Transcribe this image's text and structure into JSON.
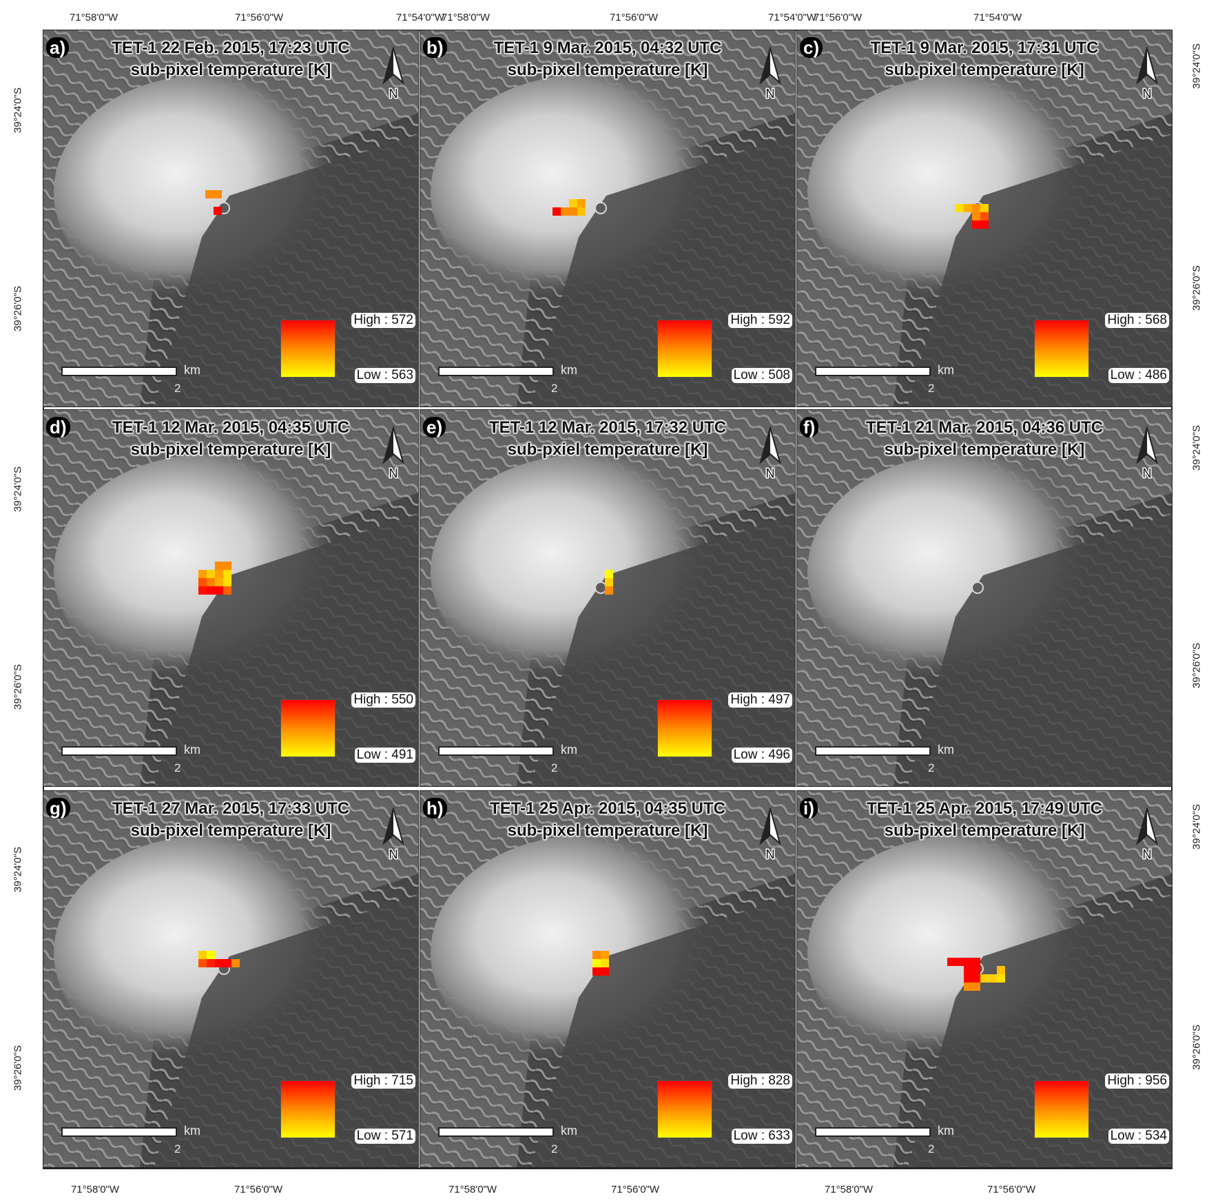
{
  "axes": {
    "top_ticks": [
      "71°58'0\"W",
      "71°56'0\"W",
      "71°54'0\"W",
      "71°58'0\"W",
      "71°56'0\"W",
      "71°54'0\"W",
      "71°56'0\"W",
      "71°54'0\"W"
    ],
    "bottom_ticks": [
      "71°58'0\"W",
      "71°56'0\"W",
      "71°58'0\"W",
      "71°56'0\"W",
      "71°58'0\"W",
      "71°56'0\"W"
    ],
    "left_ticks": [
      "39°24'0\"S",
      "39°26'0\"S",
      "39°24'0\"S",
      "39°26'0\"S",
      "39°24'0\"S",
      "39°26'0\"S"
    ],
    "right_ticks": [
      "39°24'0\"S",
      "39°26'0\"S",
      "39°24'0\"S",
      "39°26'0\"S",
      "39°24'0\"S",
      "39°26'0\"S"
    ]
  },
  "scale": {
    "unit": "km",
    "start": "0",
    "end": "2"
  },
  "north_label": "N",
  "legend_colors": {
    "high": "#ff0000",
    "low": "#ffff00",
    "mid": "#ff8c00"
  },
  "panels": [
    {
      "letter": "a)",
      "title": "TET-1 22 Feb. 2015, 17:23 UTC",
      "subtitle": "sub-pixel temperature [K]",
      "high": "High : 572",
      "low": "Low : 563",
      "hotspots": [
        [
          0,
          0,
          "#ff8c00"
        ],
        [
          1,
          0,
          "#ff8c00"
        ],
        [
          1,
          2,
          "#ff0000"
        ]
      ],
      "origin": [
        235,
        232
      ]
    },
    {
      "letter": "b)",
      "title": "TET-1 9 Mar. 2015, 04:32 UTC",
      "subtitle": "sub-pixel temperature [K]",
      "high": "High : 592",
      "low": "Low : 508",
      "hotspots": [
        [
          2,
          0,
          "#ffd000"
        ],
        [
          3,
          0,
          "#ffa500"
        ],
        [
          0,
          1,
          "#ff0000"
        ],
        [
          1,
          1,
          "#ff8c00"
        ],
        [
          2,
          1,
          "#ff8c00"
        ],
        [
          3,
          1,
          "#ffc000"
        ]
      ],
      "origin": [
        192,
        245
      ]
    },
    {
      "letter": "c)",
      "title": "TET-1 9 Mar. 2015, 17:31 UTC",
      "subtitle": "sub.pixel temperature [K]",
      "high": "High : 568",
      "low": "Low : 486",
      "hotspots": [
        [
          0,
          0,
          "#ffe000"
        ],
        [
          1,
          0,
          "#ffb000"
        ],
        [
          2,
          0,
          "#ff9000"
        ],
        [
          3,
          0,
          "#ffd000"
        ],
        [
          2,
          1,
          "#ff8c00"
        ],
        [
          3,
          1,
          "#ff5000"
        ],
        [
          2,
          2,
          "#ff0000"
        ],
        [
          3,
          2,
          "#ff0000"
        ]
      ],
      "origin": [
        230,
        252
      ]
    },
    {
      "letter": "d)",
      "title": "TET-1 12 Mar. 2015, 04:35 UTC",
      "subtitle": "sub-pixel temperature [K]",
      "high": "High : 550",
      "low": "Low : 491",
      "hotspots": [
        [
          2,
          0,
          "#ff8c00"
        ],
        [
          3,
          0,
          "#ff8c00"
        ],
        [
          0,
          1,
          "#ffa000"
        ],
        [
          1,
          1,
          "#ffd000"
        ],
        [
          2,
          1,
          "#ffa000"
        ],
        [
          3,
          1,
          "#ffe000"
        ],
        [
          0,
          2,
          "#ff5000"
        ],
        [
          1,
          2,
          "#ff8000"
        ],
        [
          2,
          2,
          "#ffb000"
        ],
        [
          3,
          2,
          "#ffe000"
        ],
        [
          0,
          3,
          "#ff1000"
        ],
        [
          1,
          3,
          "#ff0000"
        ],
        [
          2,
          3,
          "#ff0000"
        ],
        [
          3,
          3,
          "#ff6000"
        ]
      ],
      "origin": [
        225,
        220
      ]
    },
    {
      "letter": "e)",
      "title": "TET-1 12 Mar. 2015, 17:32 UTC",
      "subtitle": "sub-pxiel temperature [K]",
      "high": "High : 497",
      "low": "Low : 496",
      "hotspots": [
        [
          0,
          0,
          "#ffff00"
        ],
        [
          0,
          1,
          "#ffd000"
        ],
        [
          0,
          2,
          "#ff8c00"
        ]
      ],
      "origin": [
        268,
        232
      ]
    },
    {
      "letter": "f)",
      "title": "TET-1 21 Mar. 2015, 04:36 UTC",
      "subtitle": "sub-pixel temperature [K]",
      "high": "",
      "low": "",
      "hotspots": [],
      "origin": [
        0,
        0
      ]
    },
    {
      "letter": "g)",
      "title": "TET-1 27 Mar. 2015, 17:33 UTC",
      "subtitle": "sub-pixel temperature [K]",
      "high": "High : 715",
      "low": "Low : 571",
      "hotspots": [
        [
          0,
          0,
          "#ffd000"
        ],
        [
          1,
          0,
          "#ffff00"
        ],
        [
          0,
          1,
          "#ff5000"
        ],
        [
          1,
          1,
          "#ff2000"
        ],
        [
          2,
          1,
          "#ff0000"
        ],
        [
          3,
          1,
          "#ff0000"
        ],
        [
          4,
          1,
          "#ff8c00"
        ]
      ],
      "origin": [
        225,
        232
      ]
    },
    {
      "letter": "h)",
      "title": "TET-1 25 Apr. 2015, 04:35 UTC",
      "subtitle": "sub-pixel temperature [K]",
      "high": "High : 828",
      "low": "Low : 633",
      "hotspots": [
        [
          0,
          0,
          "#ff8c00"
        ],
        [
          1,
          0,
          "#ffa000"
        ],
        [
          0,
          1,
          "#ffff00"
        ],
        [
          1,
          1,
          "#ffe000"
        ],
        [
          0,
          2,
          "#ff0000"
        ],
        [
          1,
          2,
          "#ff0000"
        ]
      ],
      "origin": [
        250,
        232
      ]
    },
    {
      "letter": "i)",
      "title": "TET-1 25 Apr. 2015, 17:49 UTC",
      "subtitle": "sub-pixel temperature [K]",
      "high": "High : 956",
      "low": "Low : 534",
      "hotspots": [
        [
          0,
          0,
          "#ff0000"
        ],
        [
          1,
          0,
          "#ff0000"
        ],
        [
          2,
          0,
          "#ff0000"
        ],
        [
          3,
          0,
          "#ff0000"
        ],
        [
          2,
          1,
          "#ff0000"
        ],
        [
          3,
          1,
          "#ff0000"
        ],
        [
          6,
          1,
          "#ffc000"
        ],
        [
          2,
          2,
          "#ff0000"
        ],
        [
          3,
          2,
          "#ff0000"
        ],
        [
          4,
          2,
          "#ffd000"
        ],
        [
          5,
          2,
          "#ffd000"
        ],
        [
          6,
          2,
          "#ffe000"
        ],
        [
          2,
          3,
          "#ff8c00"
        ],
        [
          3,
          3,
          "#ff8c00"
        ]
      ],
      "origin": [
        218,
        242
      ]
    }
  ]
}
